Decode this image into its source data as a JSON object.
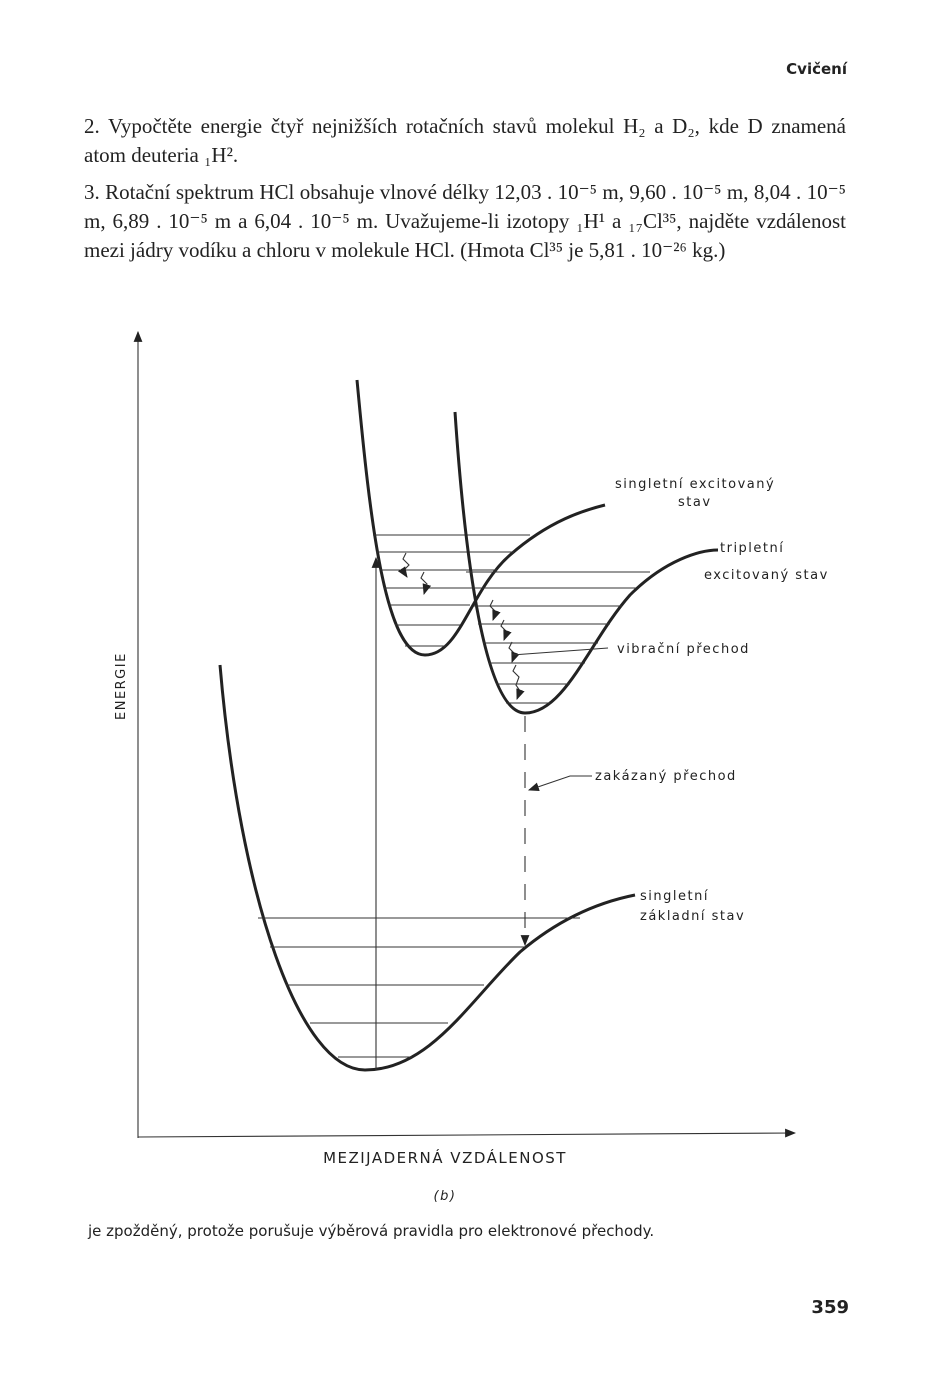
{
  "header": {
    "title": "Cvičení"
  },
  "problems": [
    "2. Vypočtěte energie čtyř nejnižších rotačních stavů molekul H₂ a D₂, kde D znamená atom deuteria ₁H².",
    "3. Rotační spektrum HCl obsahuje vlnové délky 12,03 . 10⁻⁵ m, 9,60 . 10⁻⁵ m, 8,04 . 10⁻⁵ m, 6,89 . 10⁻⁵ m a 6,04 . 10⁻⁵ m. Uvažujeme-li izotopy ₁H¹ a ₁₇Cl³⁵, najděte vzdálenost mezi jádry vodíku a chloru v molekule HCl. (Hmota Cl³⁵ je 5,81 . 10⁻²⁶ kg.)"
  ],
  "figure": {
    "y_axis_label": "ENERGIE",
    "x_axis_label": "MEZIJADERNÁ VZDÁLENOST",
    "caption": "(b)",
    "labels": {
      "singlet_excited": [
        "singletní excitovaný",
        "stav"
      ],
      "triplet_excited": [
        "tripletní",
        "excitovaný stav"
      ],
      "vibrational": [
        "vibrační přechod"
      ],
      "forbidden": [
        "zakázaný přechod"
      ],
      "singlet_ground": [
        "singletní",
        "základní stav"
      ]
    }
  },
  "footer_text": "je zpožděný, protože porušuje výběrová pravidla pro elektronové přechody.",
  "page_number": "359"
}
